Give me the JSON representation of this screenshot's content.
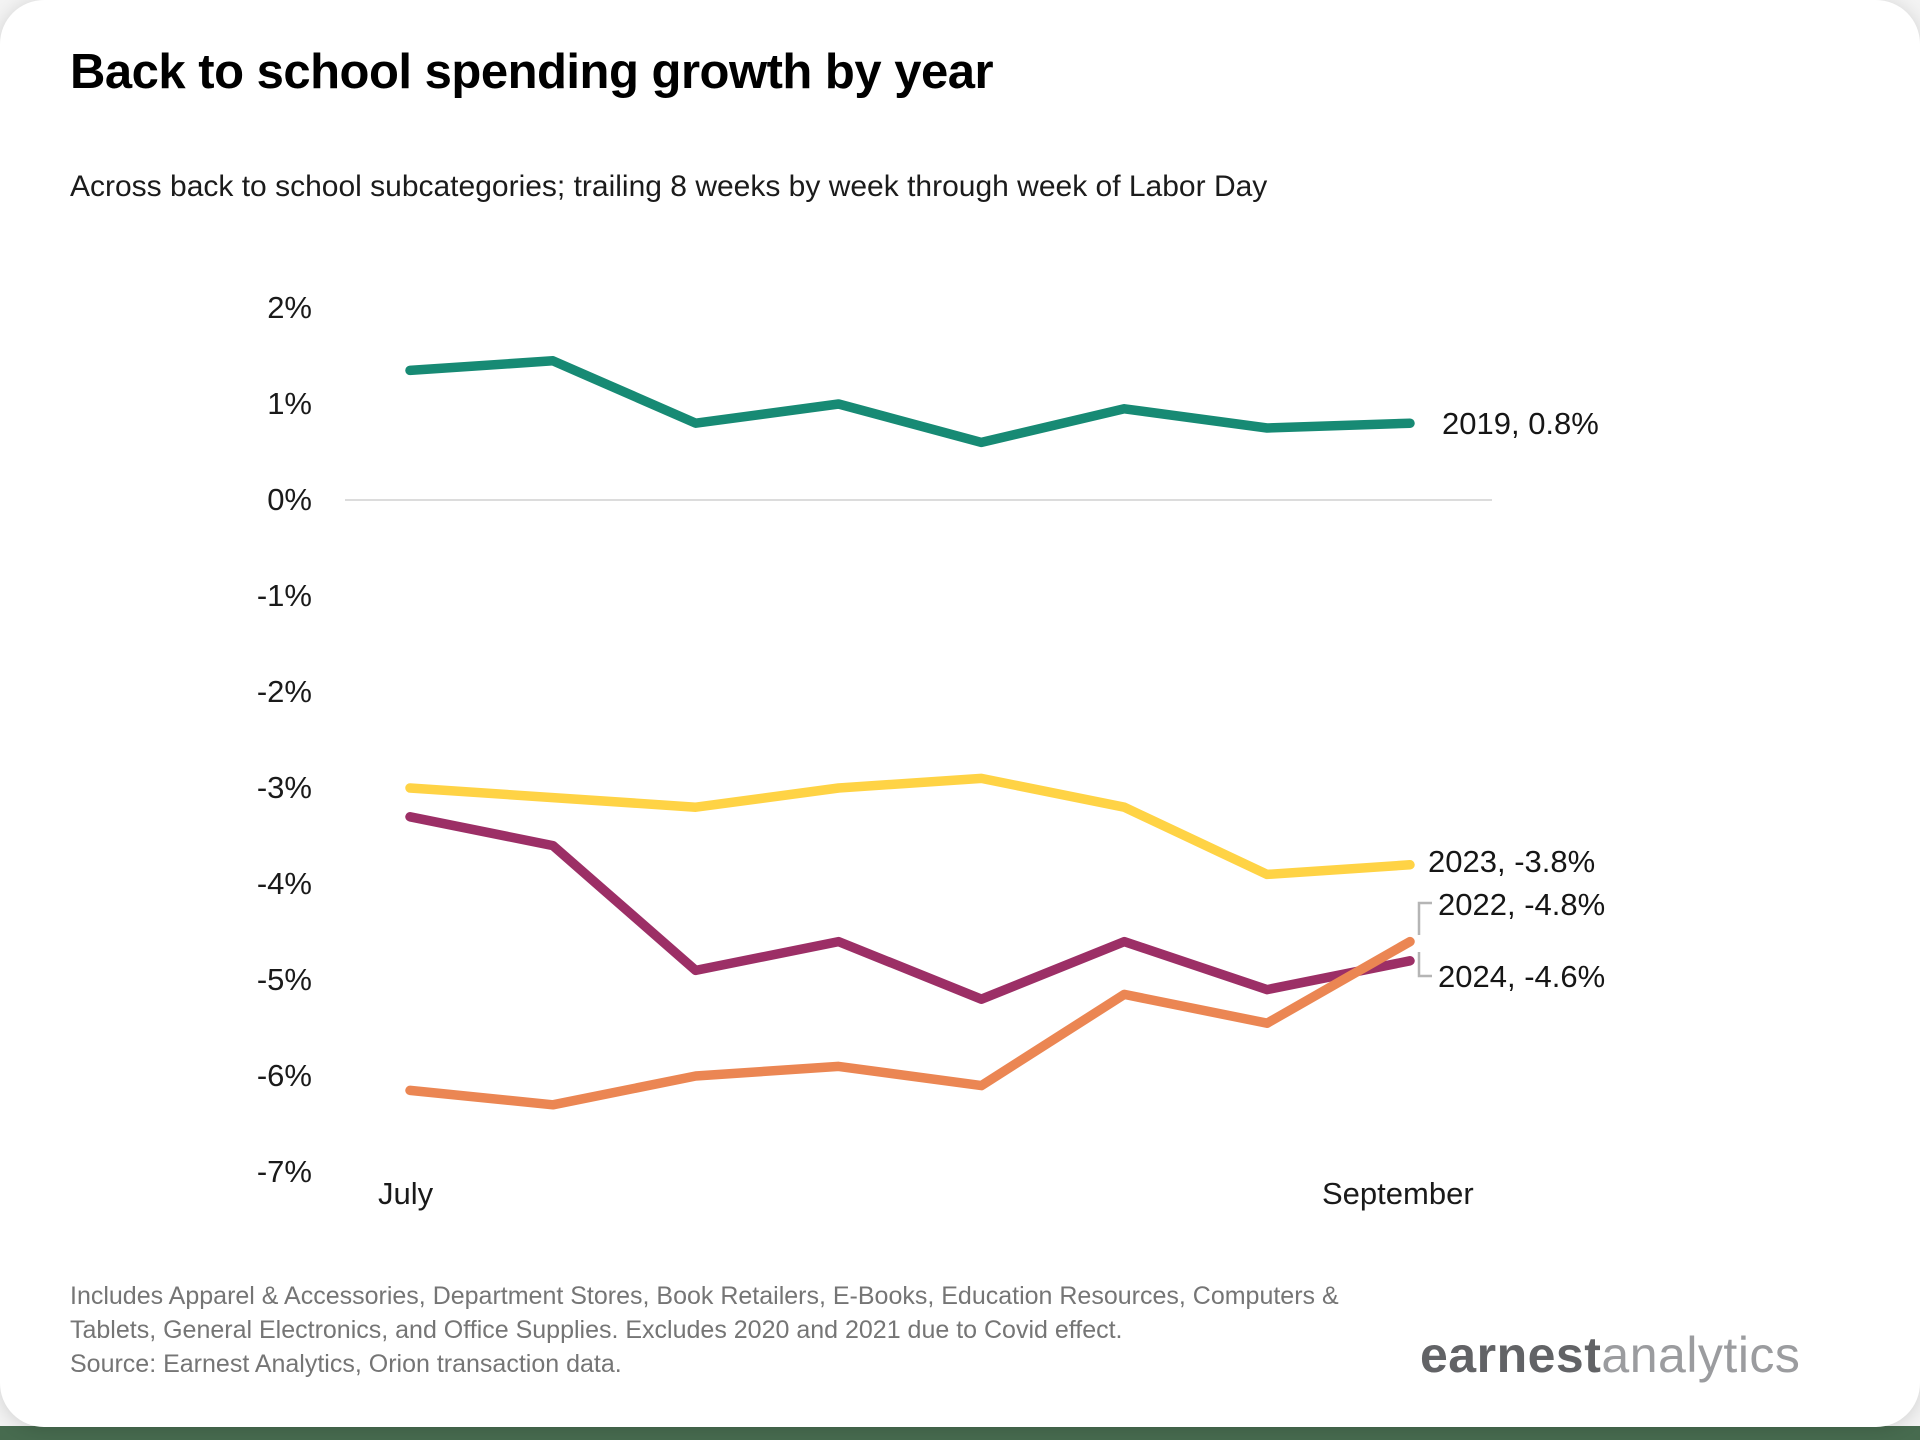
{
  "card": {
    "title": "Back to school spending growth by year",
    "subtitle": "Across back to school subcategories; trailing 8 weeks by week through week of Labor Day"
  },
  "chart_data": {
    "type": "line",
    "title": "Back to school spending growth by year",
    "subtitle": "Across back to school subcategories; trailing 8 weeks by week through week of Labor Day",
    "x_axis": {
      "description": "weeks from July through week of Labor Day (8 weekly points)",
      "labels": [
        "July",
        "September"
      ]
    },
    "y_axis": {
      "tick_max": 2,
      "tick_min": -7,
      "tick_step": 1,
      "tick_suffix": "%",
      "ylim": [
        -7,
        2
      ],
      "grid": "single gridline at 0% only"
    },
    "series": [
      {
        "name": "2019",
        "color": "#178A74",
        "values": [
          1.35,
          1.45,
          0.8,
          1.0,
          0.6,
          0.95,
          0.75,
          0.8
        ],
        "end_label": "2019, 0.8%"
      },
      {
        "name": "2023",
        "color": "#FFD345",
        "values": [
          -3.0,
          -3.1,
          -3.2,
          -3.0,
          -2.9,
          -3.2,
          -3.9,
          -3.8
        ],
        "end_label": "2023, -3.8%"
      },
      {
        "name": "2022",
        "color": "#9C2F66",
        "values": [
          -3.3,
          -3.6,
          -4.9,
          -4.6,
          -5.2,
          -4.6,
          -5.1,
          -4.8
        ],
        "end_label": "2022, -4.8%"
      },
      {
        "name": "2024",
        "color": "#EB8653",
        "values": [
          -6.15,
          -6.3,
          -6.0,
          -5.9,
          -6.1,
          -5.15,
          -5.45,
          -4.6
        ],
        "end_label": "2024, -4.6%"
      }
    ],
    "legend_position": "end-of-line labels at right"
  },
  "footer": {
    "note": "Includes Apparel & Accessories, Department Stores, Book Retailers, E-Books, Education Resources, Computers & Tablets, General Electronics, and Office Supplies. Excludes 2020 and 2021 due to Covid effect.",
    "source": "Source: Earnest Analytics, Orion transaction data."
  },
  "logo": {
    "part1": "earnest",
    "part2": "analytics"
  },
  "colors": {
    "accent_bar": "#476B4F",
    "gridline": "#DCDCDC",
    "bracket": "#B5B5B5"
  }
}
